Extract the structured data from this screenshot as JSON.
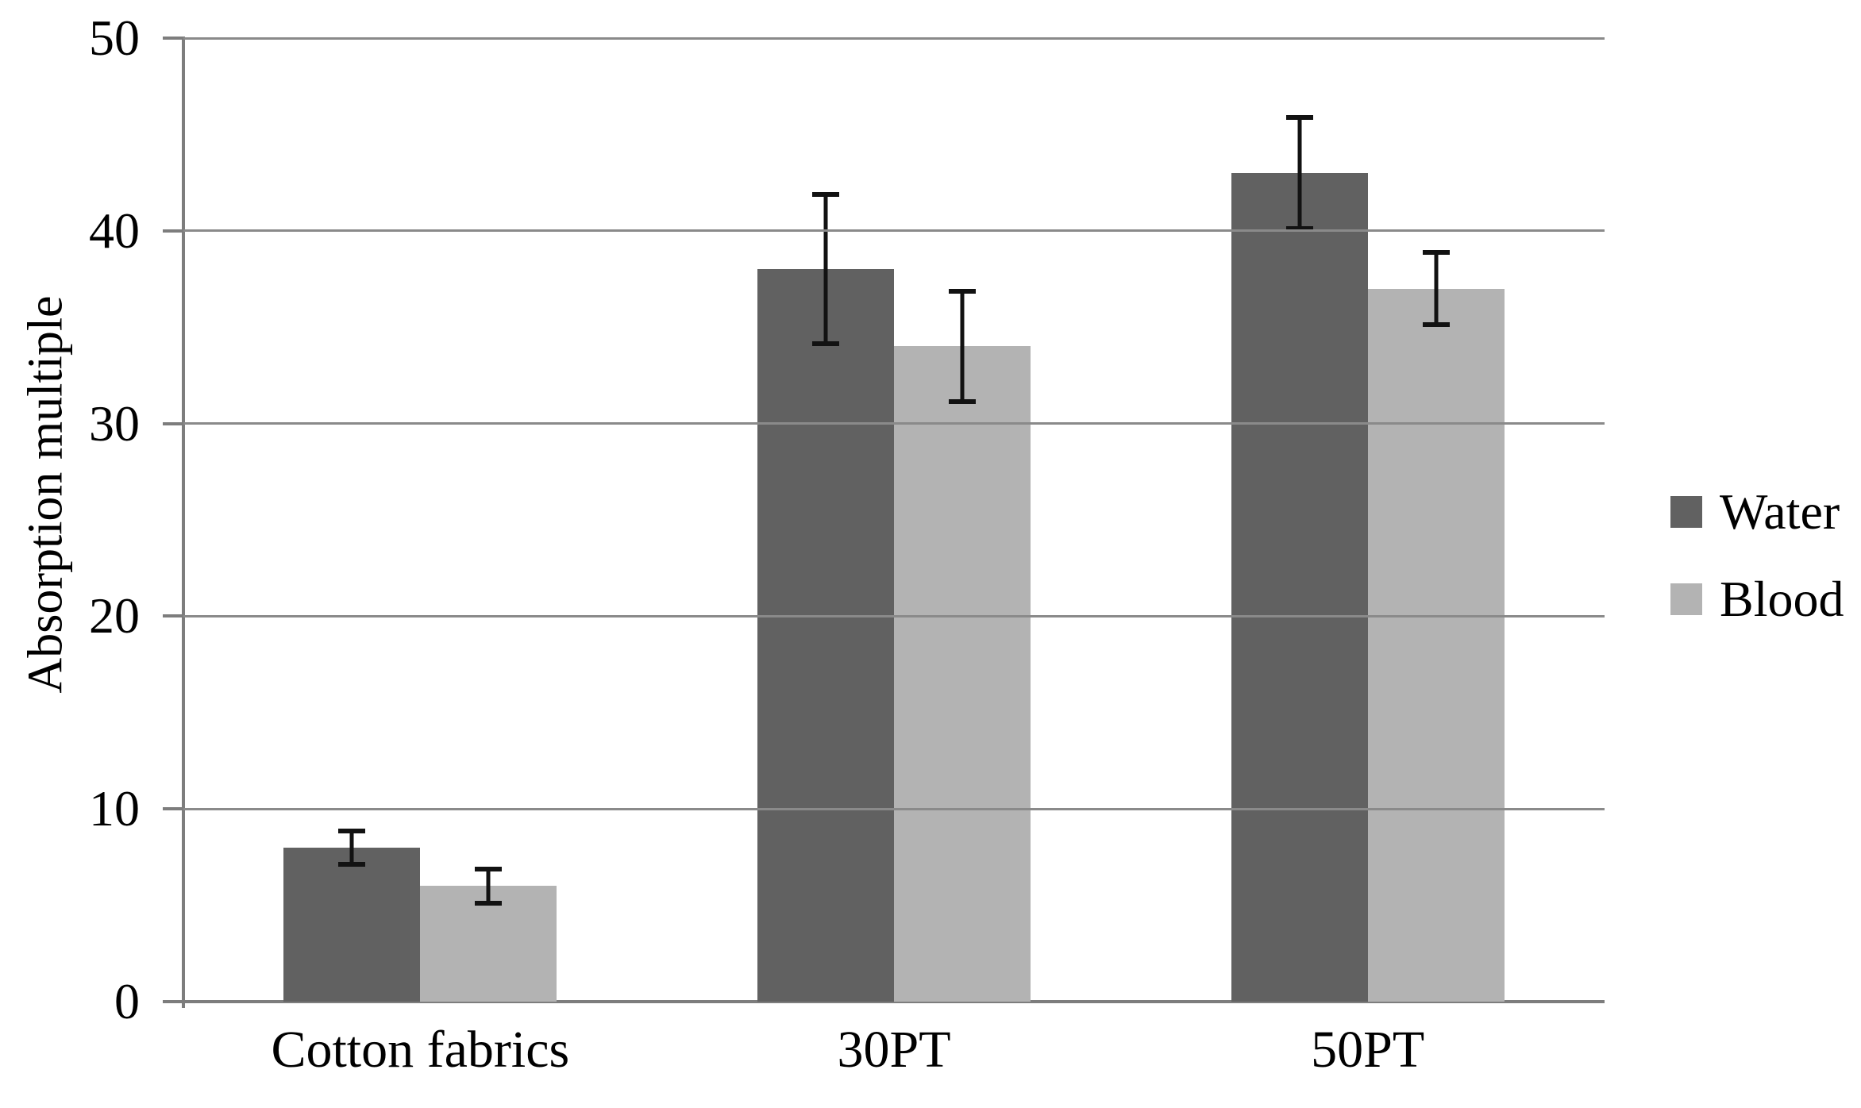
{
  "chart_data": {
    "type": "bar",
    "title": "",
    "categories": [
      "Cotton fabrics",
      "30PT",
      "50PT"
    ],
    "series": [
      {
        "name": "Water",
        "color": "#616161",
        "values": [
          8,
          38,
          43
        ],
        "error_plus": [
          1,
          4,
          3
        ],
        "error_minus": [
          1,
          4,
          3
        ]
      },
      {
        "name": "Blood",
        "color": "#b3b3b3",
        "values": [
          6,
          34,
          37
        ],
        "error_plus": [
          1,
          3,
          2
        ],
        "error_minus": [
          1,
          3,
          2
        ]
      }
    ],
    "xlabel": "",
    "ylabel": "Absorption multiple",
    "ylim": [
      0,
      50
    ],
    "ytick_interval": 10,
    "yticks": [
      "0",
      "10",
      "20",
      "30",
      "40",
      "50"
    ],
    "grid": true,
    "gridline_color": "#8a8a8a",
    "axis_color": "#7d7d7d",
    "error_bar_color": "#121212",
    "legend_position": "middle-right",
    "legend": [
      "Water",
      "Blood"
    ]
  }
}
